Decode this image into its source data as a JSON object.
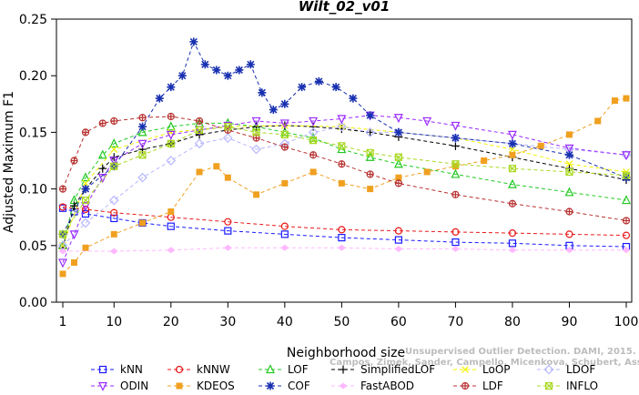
{
  "chart_data": {
    "type": "line",
    "title": "Wilt_02_v01",
    "xlabel": "Neighborhood size",
    "ylabel": "Adjusted Maximum F1",
    "xlim": [
      1,
      100
    ],
    "ylim": [
      0,
      0.25
    ],
    "x_ticks": [
      "1",
      "10",
      "20",
      "30",
      "40",
      "50",
      "60",
      "70",
      "80",
      "90",
      "100"
    ],
    "y_ticks": [
      "0.00",
      "0.05",
      "0.10",
      "0.15",
      "0.20",
      "0.25"
    ],
    "grid": false,
    "legend_position": "bottom",
    "watermark": [
      "Campos, Zimek, Sander, Campello, Micenkova, Schubert, Assent, Houle",
      "Unsupervised Outlier Detection. DAMI, 2015."
    ],
    "series": [
      {
        "name": "kNN",
        "color": "#1a1aff",
        "marker": "square",
        "points": [
          [
            1,
            0.083
          ],
          [
            3,
            0.08
          ],
          [
            5,
            0.078
          ],
          [
            10,
            0.074
          ],
          [
            15,
            0.07
          ],
          [
            20,
            0.067
          ],
          [
            30,
            0.063
          ],
          [
            40,
            0.06
          ],
          [
            50,
            0.057
          ],
          [
            60,
            0.055
          ],
          [
            70,
            0.053
          ],
          [
            80,
            0.052
          ],
          [
            90,
            0.05
          ],
          [
            100,
            0.049
          ]
        ]
      },
      {
        "name": "kNNW",
        "color": "#e8191a",
        "marker": "circle",
        "points": [
          [
            1,
            0.084
          ],
          [
            5,
            0.082
          ],
          [
            10,
            0.079
          ],
          [
            20,
            0.075
          ],
          [
            30,
            0.071
          ],
          [
            40,
            0.067
          ],
          [
            50,
            0.064
          ],
          [
            60,
            0.063
          ],
          [
            70,
            0.062
          ],
          [
            80,
            0.061
          ],
          [
            90,
            0.06
          ],
          [
            100,
            0.059
          ]
        ]
      },
      {
        "name": "LOF",
        "color": "#22c922",
        "marker": "triangle-up",
        "points": [
          [
            1,
            0.05
          ],
          [
            3,
            0.09
          ],
          [
            5,
            0.11
          ],
          [
            8,
            0.13
          ],
          [
            10,
            0.14
          ],
          [
            15,
            0.15
          ],
          [
            20,
            0.155
          ],
          [
            25,
            0.158
          ],
          [
            30,
            0.158
          ],
          [
            35,
            0.155
          ],
          [
            40,
            0.15
          ],
          [
            45,
            0.145
          ],
          [
            50,
            0.135
          ],
          [
            55,
            0.128
          ],
          [
            60,
            0.122
          ],
          [
            70,
            0.113
          ],
          [
            80,
            0.104
          ],
          [
            90,
            0.097
          ],
          [
            100,
            0.09
          ]
        ]
      },
      {
        "name": "SimplifiedLOF",
        "color": "#000000",
        "marker": "plus",
        "points": [
          [
            1,
            0.048
          ],
          [
            3,
            0.085
          ],
          [
            5,
            0.1
          ],
          [
            8,
            0.118
          ],
          [
            10,
            0.128
          ],
          [
            15,
            0.135
          ],
          [
            20,
            0.14
          ],
          [
            25,
            0.148
          ],
          [
            30,
            0.152
          ],
          [
            35,
            0.155
          ],
          [
            40,
            0.156
          ],
          [
            45,
            0.155
          ],
          [
            50,
            0.153
          ],
          [
            55,
            0.15
          ],
          [
            60,
            0.146
          ],
          [
            70,
            0.138
          ],
          [
            80,
            0.128
          ],
          [
            90,
            0.118
          ],
          [
            100,
            0.108
          ]
        ]
      },
      {
        "name": "LoOP",
        "color": "#f2f200",
        "marker": "cross",
        "points": [
          [
            1,
            0.05
          ],
          [
            5,
            0.105
          ],
          [
            10,
            0.135
          ],
          [
            20,
            0.15
          ],
          [
            30,
            0.155
          ],
          [
            40,
            0.156
          ],
          [
            50,
            0.155
          ],
          [
            60,
            0.15
          ],
          [
            70,
            0.145
          ],
          [
            80,
            0.135
          ],
          [
            90,
            0.122
          ],
          [
            100,
            0.115
          ]
        ]
      },
      {
        "name": "LDOF",
        "color": "#b7b7ff",
        "marker": "diamond",
        "points": [
          [
            1,
            0.05
          ],
          [
            5,
            0.07
          ],
          [
            10,
            0.09
          ],
          [
            15,
            0.11
          ],
          [
            20,
            0.125
          ],
          [
            25,
            0.14
          ],
          [
            30,
            0.145
          ],
          [
            35,
            0.135
          ],
          [
            40,
            0.14
          ],
          [
            45,
            0.15
          ],
          [
            50,
            0.155
          ],
          [
            55,
            0.15
          ],
          [
            60,
            0.15
          ],
          [
            70,
            0.145
          ],
          [
            80,
            0.14
          ],
          [
            90,
            0.135
          ],
          [
            100,
            0.13
          ]
        ]
      },
      {
        "name": "ODIN",
        "color": "#9a2aff",
        "marker": "triangle-down",
        "points": [
          [
            1,
            0.035
          ],
          [
            3,
            0.06
          ],
          [
            5,
            0.085
          ],
          [
            8,
            0.11
          ],
          [
            10,
            0.125
          ],
          [
            15,
            0.14
          ],
          [
            20,
            0.148
          ],
          [
            25,
            0.152
          ],
          [
            30,
            0.156
          ],
          [
            35,
            0.16
          ],
          [
            40,
            0.158
          ],
          [
            45,
            0.16
          ],
          [
            50,
            0.162
          ],
          [
            55,
            0.165
          ],
          [
            60,
            0.163
          ],
          [
            65,
            0.16
          ],
          [
            70,
            0.156
          ],
          [
            80,
            0.148
          ],
          [
            90,
            0.136
          ],
          [
            100,
            0.13
          ]
        ]
      },
      {
        "name": "KDEOS",
        "color": "#f0a020",
        "marker": "square-filled",
        "points": [
          [
            1,
            0.025
          ],
          [
            3,
            0.035
          ],
          [
            5,
            0.048
          ],
          [
            10,
            0.06
          ],
          [
            15,
            0.07
          ],
          [
            20,
            0.08
          ],
          [
            25,
            0.115
          ],
          [
            28,
            0.12
          ],
          [
            30,
            0.11
          ],
          [
            35,
            0.095
          ],
          [
            40,
            0.105
          ],
          [
            45,
            0.115
          ],
          [
            50,
            0.105
          ],
          [
            55,
            0.1
          ],
          [
            60,
            0.11
          ],
          [
            65,
            0.115
          ],
          [
            70,
            0.12
          ],
          [
            75,
            0.125
          ],
          [
            80,
            0.13
          ],
          [
            85,
            0.138
          ],
          [
            90,
            0.148
          ],
          [
            95,
            0.16
          ],
          [
            98,
            0.178
          ],
          [
            100,
            0.18
          ]
        ]
      },
      {
        "name": "COF",
        "color": "#1830b0",
        "marker": "asterisk",
        "points": [
          [
            1,
            0.06
          ],
          [
            5,
            0.1
          ],
          [
            10,
            0.12
          ],
          [
            15,
            0.155
          ],
          [
            18,
            0.18
          ],
          [
            20,
            0.19
          ],
          [
            22,
            0.2
          ],
          [
            24,
            0.23
          ],
          [
            26,
            0.21
          ],
          [
            28,
            0.205
          ],
          [
            30,
            0.2
          ],
          [
            32,
            0.205
          ],
          [
            34,
            0.21
          ],
          [
            36,
            0.185
          ],
          [
            38,
            0.17
          ],
          [
            40,
            0.175
          ],
          [
            43,
            0.19
          ],
          [
            46,
            0.195
          ],
          [
            49,
            0.19
          ],
          [
            52,
            0.18
          ],
          [
            55,
            0.165
          ],
          [
            60,
            0.15
          ],
          [
            70,
            0.145
          ],
          [
            80,
            0.14
          ],
          [
            90,
            0.13
          ],
          [
            100,
            0.11
          ]
        ]
      },
      {
        "name": "FastABOD",
        "color": "#ffb8ff",
        "marker": "diamond-filled",
        "points": [
          [
            1,
            0.045
          ],
          [
            10,
            0.045
          ],
          [
            20,
            0.046
          ],
          [
            30,
            0.048
          ],
          [
            40,
            0.048
          ],
          [
            50,
            0.048
          ],
          [
            60,
            0.047
          ],
          [
            70,
            0.047
          ],
          [
            80,
            0.046
          ],
          [
            90,
            0.046
          ],
          [
            100,
            0.046
          ]
        ]
      },
      {
        "name": "LDF",
        "color": "#b83030",
        "marker": "circle-plus",
        "points": [
          [
            1,
            0.1
          ],
          [
            3,
            0.125
          ],
          [
            5,
            0.15
          ],
          [
            8,
            0.158
          ],
          [
            10,
            0.16
          ],
          [
            15,
            0.163
          ],
          [
            20,
            0.164
          ],
          [
            25,
            0.16
          ],
          [
            30,
            0.152
          ],
          [
            35,
            0.145
          ],
          [
            40,
            0.137
          ],
          [
            45,
            0.13
          ],
          [
            50,
            0.122
          ],
          [
            55,
            0.113
          ],
          [
            60,
            0.105
          ],
          [
            70,
            0.095
          ],
          [
            80,
            0.087
          ],
          [
            90,
            0.08
          ],
          [
            100,
            0.072
          ]
        ]
      },
      {
        "name": "INFLO",
        "color": "#a8d820",
        "marker": "box-x",
        "points": [
          [
            1,
            0.06
          ],
          [
            5,
            0.09
          ],
          [
            10,
            0.12
          ],
          [
            15,
            0.13
          ],
          [
            20,
            0.14
          ],
          [
            25,
            0.152
          ],
          [
            30,
            0.155
          ],
          [
            35,
            0.15
          ],
          [
            40,
            0.148
          ],
          [
            45,
            0.143
          ],
          [
            50,
            0.138
          ],
          [
            55,
            0.132
          ],
          [
            60,
            0.128
          ],
          [
            70,
            0.122
          ],
          [
            80,
            0.118
          ],
          [
            90,
            0.115
          ],
          [
            100,
            0.112
          ]
        ]
      }
    ]
  }
}
